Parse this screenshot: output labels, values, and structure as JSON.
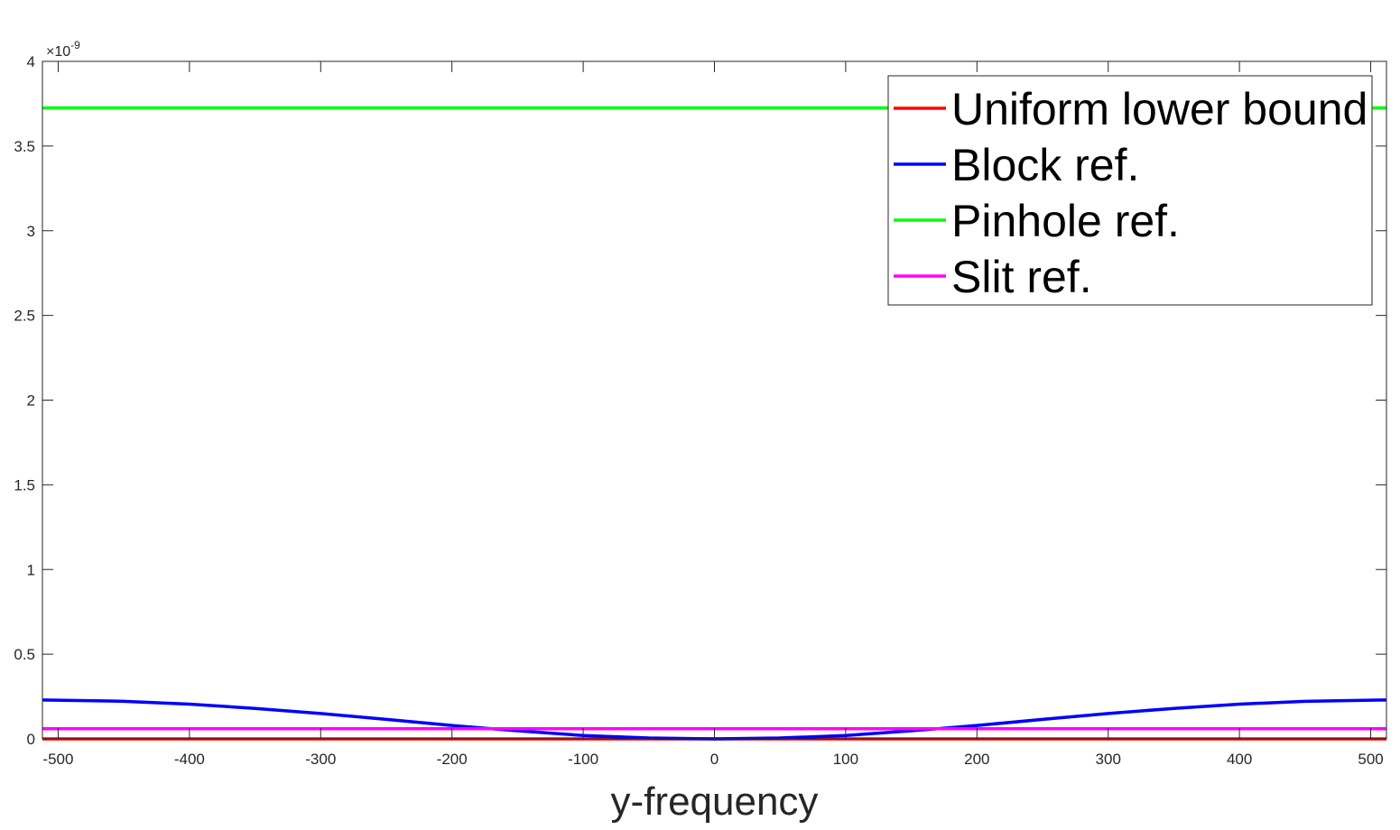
{
  "chart_data": {
    "type": "line",
    "title": "",
    "xlabel": "y-frequency",
    "ylabel": "",
    "xlim": [
      -512,
      512
    ],
    "ylim": [
      0,
      4
    ],
    "y_exponent_label": "×10",
    "y_exponent_power": "-9",
    "xticks": [
      -500,
      -400,
      -300,
      -200,
      -100,
      0,
      100,
      200,
      300,
      400,
      500
    ],
    "xtick_labels": [
      "-500",
      "-400",
      "-300",
      "-200",
      "-100",
      "0",
      "100",
      "200",
      "300",
      "400",
      "500"
    ],
    "yticks": [
      0,
      0.5,
      1,
      1.5,
      2,
      2.5,
      3,
      3.5,
      4
    ],
    "ytick_labels": [
      "0",
      "0.5",
      "1",
      "1.5",
      "2",
      "2.5",
      "3",
      "3.5",
      "4"
    ],
    "grid": false,
    "legend_position": "top-right",
    "series": [
      {
        "name": "Uniform lower bound",
        "color": "#ff0000",
        "x": [
          -512,
          512
        ],
        "y": [
          0.0,
          0.0
        ]
      },
      {
        "name": "Block ref.",
        "color": "#0000ff",
        "x": [
          -512,
          -450,
          -400,
          -350,
          -300,
          -250,
          -200,
          -170,
          -150,
          -100,
          -50,
          0,
          50,
          100,
          150,
          170,
          200,
          250,
          300,
          350,
          400,
          450,
          512
        ],
        "y": [
          0.23,
          0.222,
          0.205,
          0.18,
          0.15,
          0.115,
          0.079,
          0.06,
          0.048,
          0.02,
          0.005,
          0.0,
          0.005,
          0.02,
          0.048,
          0.06,
          0.079,
          0.115,
          0.15,
          0.18,
          0.205,
          0.222,
          0.23
        ]
      },
      {
        "name": "Pinhole ref.",
        "color": "#00ff00",
        "x": [
          -512,
          512
        ],
        "y": [
          3.725,
          3.725
        ]
      },
      {
        "name": "Slit ref.",
        "color": "#ff00ff",
        "x": [
          -512,
          512
        ],
        "y": [
          0.06,
          0.06
        ]
      }
    ]
  }
}
